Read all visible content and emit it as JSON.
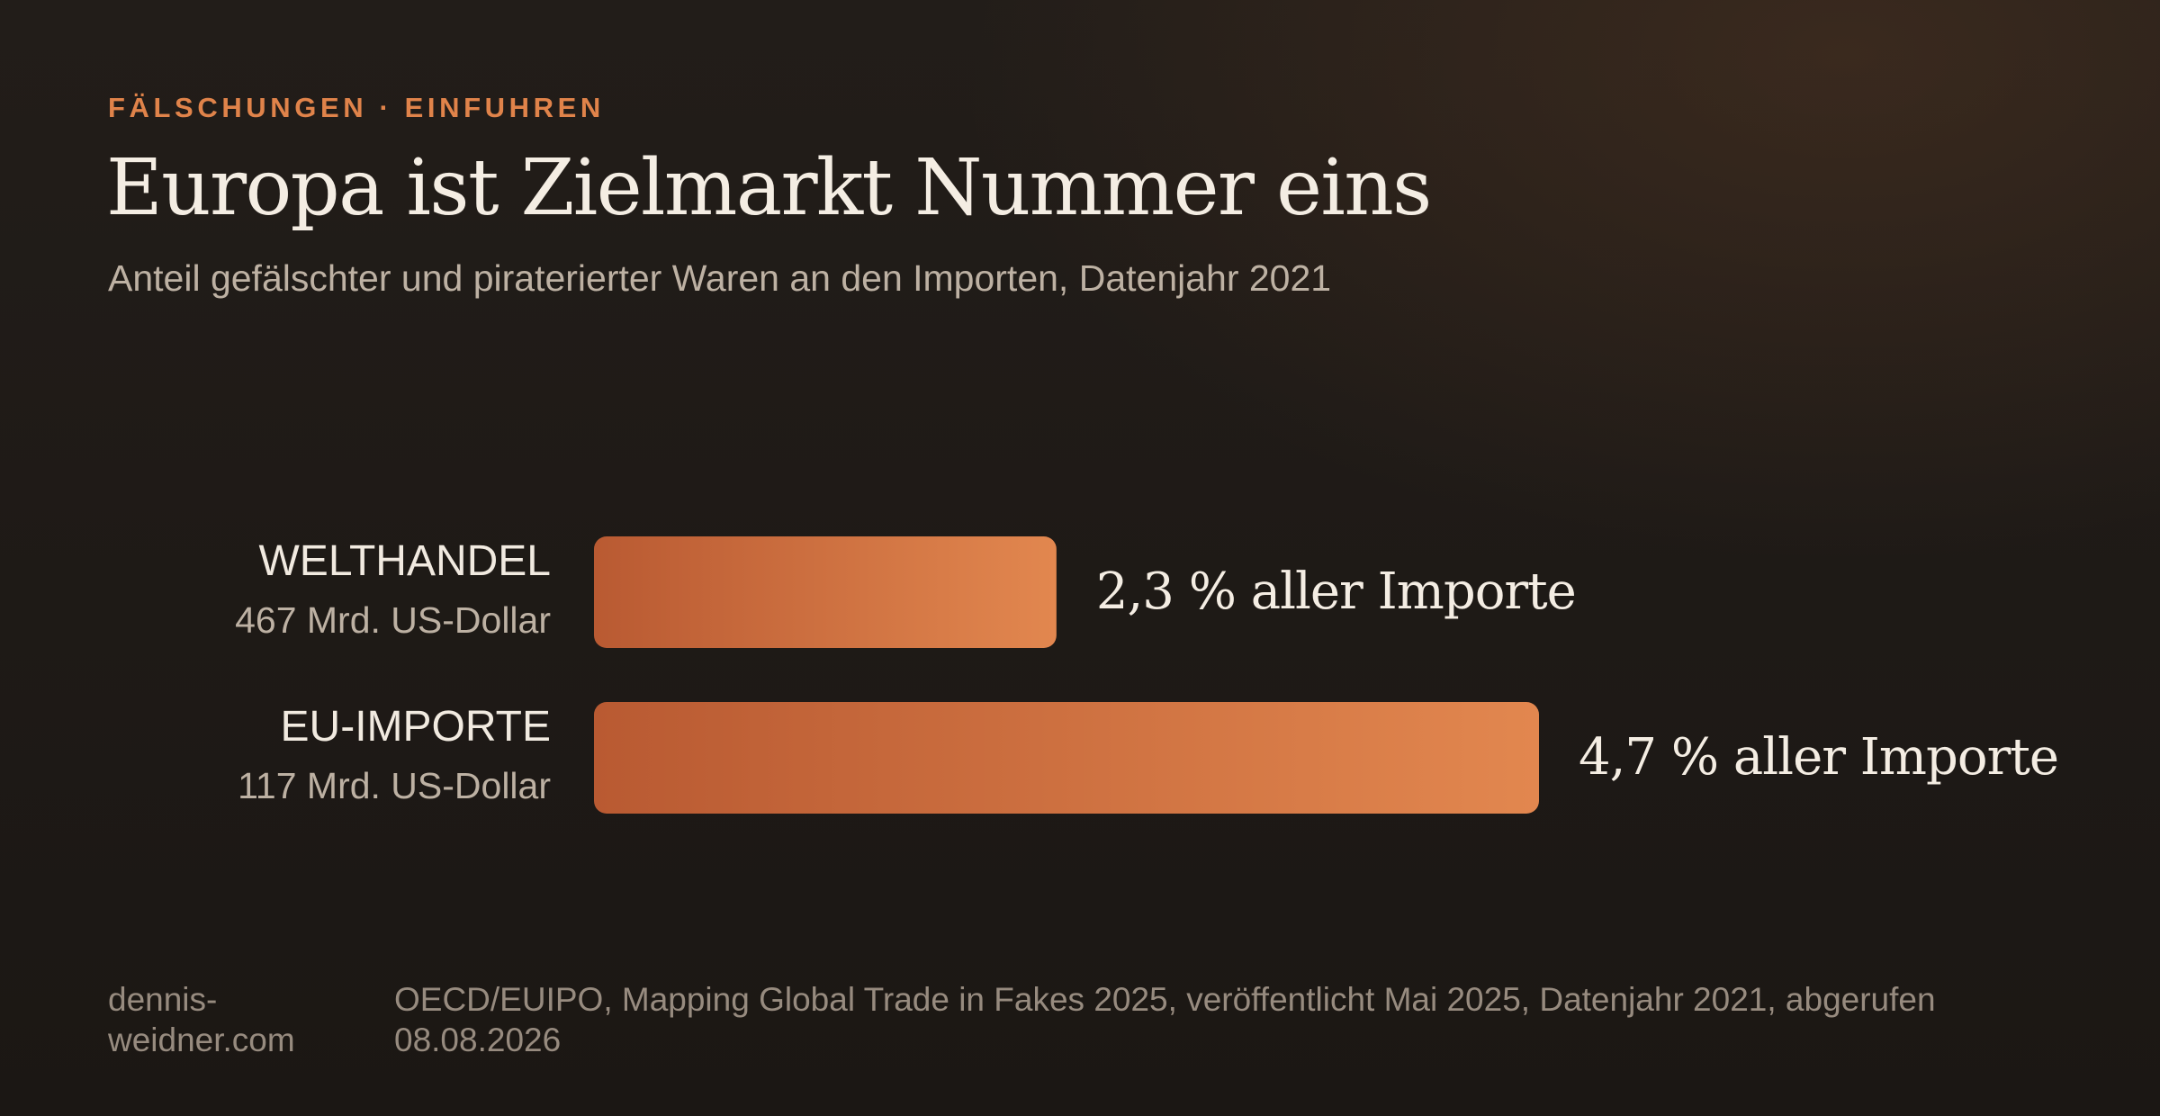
{
  "header": {
    "eyebrow": "FÄLSCHUNGEN · EINFUHREN",
    "title": "Europa ist Zielmarkt Nummer eins",
    "subtitle": "Anteil gefälschter und piraterierter Waren an den Importen, Datenjahr 2021"
  },
  "chart_data": {
    "type": "bar",
    "orientation": "horizontal",
    "title": "Europa ist Zielmarkt Nummer eins",
    "subtitle": "Anteil gefälschter und piraterierter Waren an den Importen, Datenjahr 2021",
    "categories": [
      "WELTHANDEL",
      "EU-IMPORTE"
    ],
    "sublabels": [
      "467 Mrd. US-Dollar",
      "117 Mrd. US-Dollar"
    ],
    "values": [
      2.3,
      4.7
    ],
    "value_labels": [
      "2,3 % aller Importe",
      "4,7 % aller Importe"
    ],
    "unit": "%",
    "xlim": [
      0,
      4.7
    ],
    "grid": false,
    "colors": {
      "bar_start": "#b95a32",
      "bar_end": "#e2874f"
    }
  },
  "footer": {
    "site": "dennis-weidner.com",
    "source": "OECD/EUIPO, Mapping Global Trade in Fakes 2025, veröffentlicht Mai 2025, Datenjahr 2021, abgerufen 08.08.2026"
  },
  "colors": {
    "accent": "#e0834a",
    "title": "#f4ede3",
    "subtitle": "#bdb1a3",
    "footer": "#978b7f",
    "background": "#1f1a16"
  }
}
